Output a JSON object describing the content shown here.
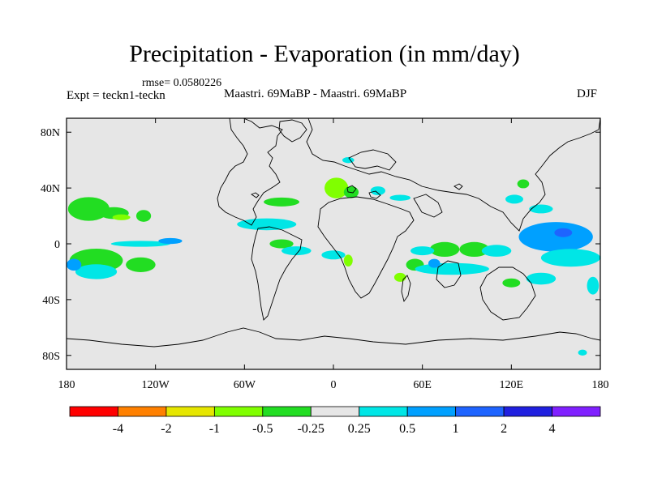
{
  "title": "Precipitation - Evaporation (in mm/day)",
  "subtitle": {
    "rmse": "rmse= 0.0580226",
    "experiment": "Expt = teckn1-teckn",
    "comparison": "Maastri.  69MaBP - Maastri.  69MaBP",
    "season": "DJF"
  },
  "axes": {
    "lat_labels": [
      "80N",
      "40N",
      "0",
      "40S",
      "80S"
    ],
    "lat_values": [
      80,
      40,
      0,
      -40,
      -80
    ],
    "lon_labels": [
      "180",
      "120W",
      "60W",
      "0",
      "60E",
      "120E",
      "180"
    ],
    "lon_values": [
      -180,
      -120,
      -60,
      0,
      60,
      120,
      180
    ],
    "lat_range": [
      -90,
      90
    ],
    "lon_range": [
      -180,
      180
    ]
  },
  "colorbar": {
    "colors": [
      "#ff0000",
      "#ff8000",
      "#e6e600",
      "#80ff00",
      "#22dd22",
      "#e6e6e6",
      "#00e6e6",
      "#00a0ff",
      "#1e64ff",
      "#2020e0",
      "#8020ff"
    ],
    "labels": [
      "-4",
      "-2",
      "-1",
      "-0.5",
      "-0.25",
      "0.25",
      "0.5",
      "1",
      "2",
      "4"
    ]
  },
  "background_color": "#e6e6e6",
  "anomaly_regions": [
    {
      "name": "north-pacific-west",
      "level": "green",
      "lon": -165,
      "lat": 25,
      "rx": 14,
      "ry": 8
    },
    {
      "name": "north-pacific-band",
      "level": "green",
      "lon": -148,
      "lat": 22,
      "rx": 10,
      "ry": 4
    },
    {
      "name": "north-pacific-east",
      "level": "lightgreen",
      "lon": -143,
      "lat": 19,
      "rx": 6,
      "ry": 2
    },
    {
      "name": "central-pacific-green",
      "level": "green",
      "lon": -128,
      "lat": 20,
      "rx": 5,
      "ry": 4
    },
    {
      "name": "south-pacific-green",
      "level": "green",
      "lon": -160,
      "lat": -12,
      "rx": 18,
      "ry": 8
    },
    {
      "name": "south-pacific-tail",
      "level": "green",
      "lon": -130,
      "lat": -15,
      "rx": 10,
      "ry": 5
    },
    {
      "name": "south-pacific-cyan",
      "level": "cyan",
      "lon": -160,
      "lat": -20,
      "rx": 14,
      "ry": 5
    },
    {
      "name": "south-pacific-blue",
      "level": "lightblue",
      "lon": -175,
      "lat": -15,
      "rx": 5,
      "ry": 4
    },
    {
      "name": "itcz-pacific-cyan",
      "level": "cyan",
      "lon": -130,
      "lat": 0,
      "rx": 20,
      "ry": 2
    },
    {
      "name": "itcz-pacific-blue",
      "level": "lightblue",
      "lon": -110,
      "lat": 2,
      "rx": 8,
      "ry": 2
    },
    {
      "name": "north-atlantic-green",
      "level": "green",
      "lon": -35,
      "lat": 30,
      "rx": 12,
      "ry": 3
    },
    {
      "name": "tropical-atlantic-cyan",
      "level": "cyan",
      "lon": -45,
      "lat": 14,
      "rx": 20,
      "ry": 4
    },
    {
      "name": "tropical-atlantic-green",
      "level": "green",
      "lon": -35,
      "lat": 0,
      "rx": 8,
      "ry": 3
    },
    {
      "name": "europe-yellow",
      "level": "yellow",
      "lon": -2,
      "lat": 42,
      "rx": 3,
      "ry": 3
    },
    {
      "name": "europe-green",
      "level": "lightgreen",
      "lon": 2,
      "lat": 40,
      "rx": 8,
      "ry": 7
    },
    {
      "name": "europe-green-2",
      "level": "green",
      "lon": 12,
      "lat": 37,
      "rx": 5,
      "ry": 4
    },
    {
      "name": "tethys-cyan",
      "level": "cyan",
      "lon": 30,
      "lat": 38,
      "rx": 5,
      "ry": 3
    },
    {
      "name": "asia-cyan",
      "level": "cyan",
      "lon": 45,
      "lat": 33,
      "rx": 7,
      "ry": 2
    },
    {
      "name": "central-africa-green",
      "level": "lightgreen",
      "lon": 10,
      "lat": -12,
      "rx": 3,
      "ry": 4
    },
    {
      "name": "south-atlantic-cyan",
      "level": "cyan",
      "lon": 0,
      "lat": -8,
      "rx": 8,
      "ry": 3
    },
    {
      "name": "south-america-cyan",
      "level": "cyan",
      "lon": -25,
      "lat": -5,
      "rx": 10,
      "ry": 3
    },
    {
      "name": "indian-ocean-green-1",
      "level": "green",
      "lon": 75,
      "lat": -4,
      "rx": 10,
      "ry": 5
    },
    {
      "name": "indian-ocean-green-2",
      "level": "green",
      "lon": 95,
      "lat": -4,
      "rx": 10,
      "ry": 5
    },
    {
      "name": "indian-ocean-cyan",
      "level": "cyan",
      "lon": 60,
      "lat": -5,
      "rx": 8,
      "ry": 3
    },
    {
      "name": "indian-ocean-cyan-2",
      "level": "cyan",
      "lon": 110,
      "lat": -5,
      "rx": 10,
      "ry": 4
    },
    {
      "name": "indian-ocean-green-3",
      "level": "green",
      "lon": 55,
      "lat": -15,
      "rx": 6,
      "ry": 4
    },
    {
      "name": "indian-ocean-cyan-3",
      "level": "cyan",
      "lon": 80,
      "lat": -18,
      "rx": 25,
      "ry": 4
    },
    {
      "name": "indian-ocean-blue",
      "level": "lightblue",
      "lon": 68,
      "lat": -14,
      "rx": 4,
      "ry": 3
    },
    {
      "name": "india-green",
      "level": "lightgreen",
      "lon": 45,
      "lat": -24,
      "rx": 4,
      "ry": 3
    },
    {
      "name": "east-asia-green",
      "level": "green",
      "lon": 128,
      "lat": 43,
      "rx": 4,
      "ry": 3
    },
    {
      "name": "west-pacific-cyan",
      "level": "cyan",
      "lon": 122,
      "lat": 32,
      "rx": 6,
      "ry": 3
    },
    {
      "name": "west-pacific-cyan-2",
      "level": "cyan",
      "lon": 140,
      "lat": 25,
      "rx": 8,
      "ry": 3
    },
    {
      "name": "west-pacific-blue",
      "level": "lightblue",
      "lon": 150,
      "lat": 5,
      "rx": 25,
      "ry": 10
    },
    {
      "name": "west-pacific-dark",
      "level": "blue",
      "lon": 155,
      "lat": 8,
      "rx": 6,
      "ry": 3
    },
    {
      "name": "west-pacific-cyan-3",
      "level": "cyan",
      "lon": 160,
      "lat": -10,
      "rx": 20,
      "ry": 6
    },
    {
      "name": "west-pacific-cyan-4",
      "level": "cyan",
      "lon": 140,
      "lat": -25,
      "rx": 10,
      "ry": 4
    },
    {
      "name": "south-indian-green",
      "level": "green",
      "lon": 120,
      "lat": -28,
      "rx": 6,
      "ry": 3
    },
    {
      "name": "southern-ocean-cyan",
      "level": "cyan",
      "lon": 175,
      "lat": -30,
      "rx": 4,
      "ry": 6
    },
    {
      "name": "antarctic-cyan",
      "level": "cyan",
      "lon": 168,
      "lat": -78,
      "rx": 3,
      "ry": 2
    },
    {
      "name": "north-asia-cyan",
      "level": "cyan",
      "lon": 10,
      "lat": 60,
      "rx": 4,
      "ry": 2
    }
  ]
}
